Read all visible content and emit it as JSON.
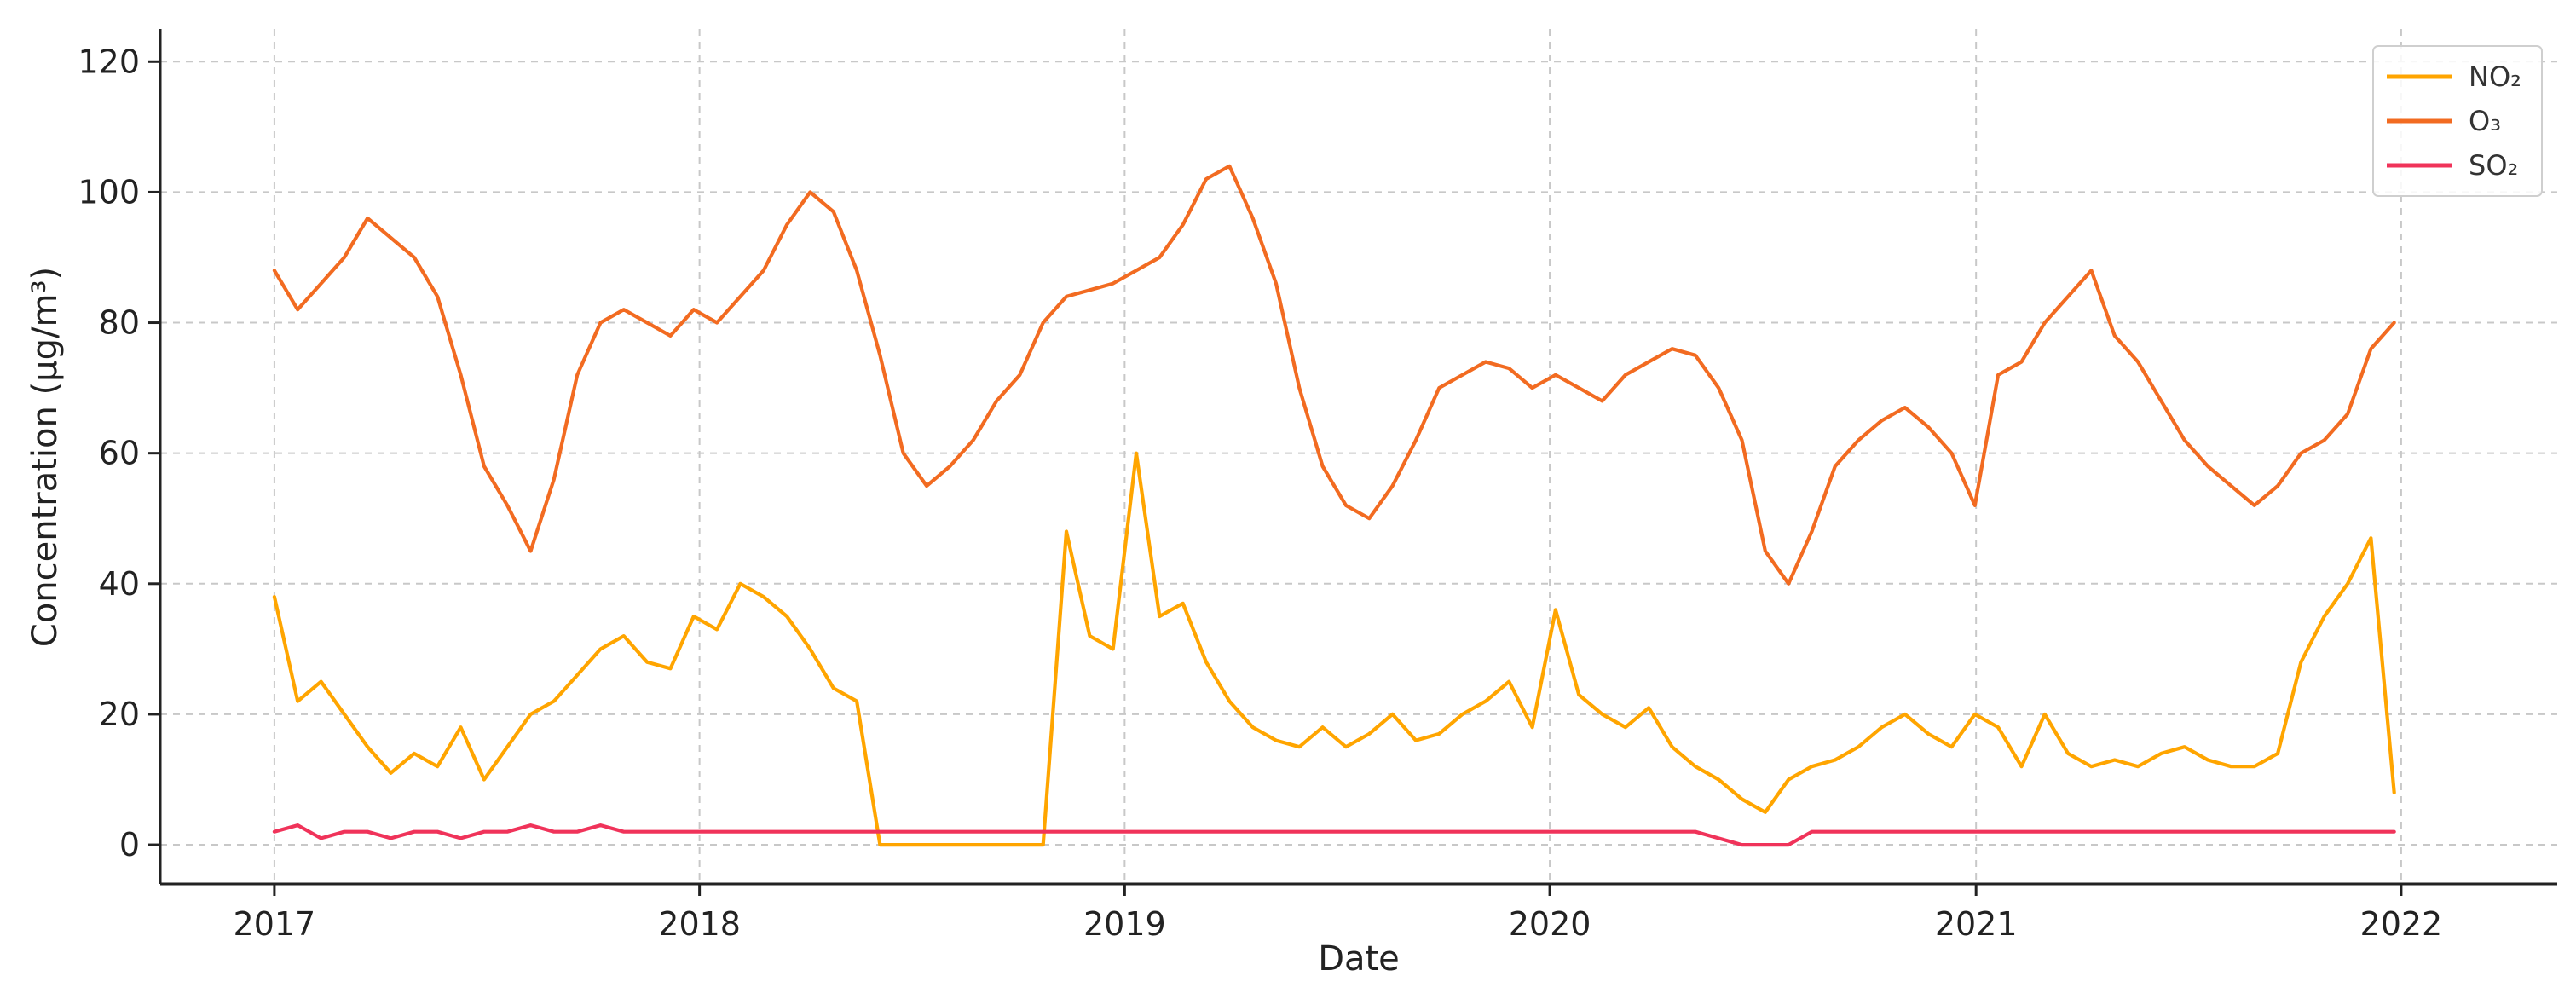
{
  "chart_data": {
    "type": "line",
    "title": "",
    "xlabel": "Date",
    "ylabel": "Concentration (µg/m³)",
    "x_type": "date",
    "xlim": [
      "2016-09-25",
      "2022-05-15"
    ],
    "ylim": [
      -6,
      125
    ],
    "x_ticks": [
      "2017",
      "2018",
      "2019",
      "2020",
      "2021",
      "2022"
    ],
    "x_tick_dates": [
      "2017-01-01",
      "2018-01-01",
      "2019-01-01",
      "2020-01-01",
      "2021-01-01",
      "2022-01-01"
    ],
    "y_ticks": [
      0,
      20,
      40,
      60,
      80,
      100,
      120
    ],
    "grid": true,
    "legend_position": "top-right",
    "series": [
      {
        "name": "NO₂",
        "color": "#FFA500",
        "x": [
          "2017-01-01",
          "2017-01-21",
          "2017-02-10",
          "2017-03-02",
          "2017-03-22",
          "2017-04-11",
          "2017-05-01",
          "2017-05-21",
          "2017-06-10",
          "2017-06-30",
          "2017-07-20",
          "2017-08-09",
          "2017-08-29",
          "2017-09-18",
          "2017-10-08",
          "2017-10-28",
          "2017-11-17",
          "2017-12-07",
          "2017-12-27",
          "2018-01-16",
          "2018-02-05",
          "2018-02-25",
          "2018-03-17",
          "2018-04-06",
          "2018-04-26",
          "2018-05-16",
          "2018-06-05",
          "2018-06-25",
          "2018-07-15",
          "2018-08-04",
          "2018-08-24",
          "2018-09-13",
          "2018-10-03",
          "2018-10-23",
          "2018-11-12",
          "2018-12-02",
          "2018-12-22",
          "2019-01-11",
          "2019-01-31",
          "2019-02-20",
          "2019-03-12",
          "2019-04-01",
          "2019-04-21",
          "2019-05-11",
          "2019-05-31",
          "2019-06-20",
          "2019-07-10",
          "2019-07-30",
          "2019-08-19",
          "2019-09-08",
          "2019-09-28",
          "2019-10-18",
          "2019-11-07",
          "2019-11-27",
          "2019-12-17",
          "2020-01-06",
          "2020-01-26",
          "2020-02-15",
          "2020-03-06",
          "2020-03-26",
          "2020-04-15",
          "2020-05-05",
          "2020-05-25",
          "2020-06-14",
          "2020-07-04",
          "2020-07-24",
          "2020-08-13",
          "2020-09-02",
          "2020-09-22",
          "2020-10-12",
          "2020-11-01",
          "2020-11-21",
          "2020-12-11",
          "2020-12-31",
          "2021-01-20",
          "2021-02-09",
          "2021-03-01",
          "2021-03-21",
          "2021-04-10",
          "2021-04-30",
          "2021-05-20",
          "2021-06-09",
          "2021-06-29",
          "2021-07-19",
          "2021-08-08",
          "2021-08-28",
          "2021-09-17",
          "2021-10-07",
          "2021-10-27",
          "2021-11-16",
          "2021-12-06",
          "2021-12-26"
        ],
        "values": [
          38,
          22,
          25,
          20,
          15,
          11,
          14,
          12,
          18,
          10,
          15,
          20,
          22,
          26,
          30,
          32,
          28,
          27,
          35,
          33,
          40,
          38,
          35,
          30,
          24,
          22,
          0,
          0,
          0,
          0,
          0,
          0,
          0,
          0,
          48,
          32,
          30,
          60,
          35,
          37,
          28,
          22,
          18,
          16,
          15,
          18,
          15,
          17,
          20,
          16,
          17,
          20,
          22,
          25,
          18,
          36,
          23,
          20,
          18,
          21,
          15,
          12,
          10,
          7,
          5,
          10,
          12,
          13,
          15,
          18,
          20,
          17,
          15,
          20,
          18,
          12,
          20,
          14,
          12,
          13,
          12,
          14,
          15,
          13,
          12,
          12,
          14,
          28,
          35,
          40,
          47,
          8
        ]
      },
      {
        "name": "O₃",
        "color": "#F26B21",
        "x": [
          "2017-01-01",
          "2017-01-21",
          "2017-02-10",
          "2017-03-02",
          "2017-03-22",
          "2017-04-11",
          "2017-05-01",
          "2017-05-21",
          "2017-06-10",
          "2017-06-30",
          "2017-07-20",
          "2017-08-09",
          "2017-08-29",
          "2017-09-18",
          "2017-10-08",
          "2017-10-28",
          "2017-11-17",
          "2017-12-07",
          "2017-12-27",
          "2018-01-16",
          "2018-02-05",
          "2018-02-25",
          "2018-03-17",
          "2018-04-06",
          "2018-04-26",
          "2018-05-16",
          "2018-06-05",
          "2018-06-25",
          "2018-07-15",
          "2018-08-04",
          "2018-08-24",
          "2018-09-13",
          "2018-10-03",
          "2018-10-23",
          "2018-11-12",
          "2018-12-02",
          "2018-12-22",
          "2019-01-11",
          "2019-01-31",
          "2019-02-20",
          "2019-03-12",
          "2019-04-01",
          "2019-04-21",
          "2019-05-11",
          "2019-05-31",
          "2019-06-20",
          "2019-07-10",
          "2019-07-30",
          "2019-08-19",
          "2019-09-08",
          "2019-09-28",
          "2019-10-18",
          "2019-11-07",
          "2019-11-27",
          "2019-12-17",
          "2020-01-06",
          "2020-01-26",
          "2020-02-15",
          "2020-03-06",
          "2020-03-26",
          "2020-04-15",
          "2020-05-05",
          "2020-05-25",
          "2020-06-14",
          "2020-07-04",
          "2020-07-24",
          "2020-08-13",
          "2020-09-02",
          "2020-09-22",
          "2020-10-12",
          "2020-11-01",
          "2020-11-21",
          "2020-12-11",
          "2020-12-31",
          "2021-01-20",
          "2021-02-09",
          "2021-03-01",
          "2021-03-21",
          "2021-04-10",
          "2021-04-30",
          "2021-05-20",
          "2021-06-09",
          "2021-06-29",
          "2021-07-19",
          "2021-08-08",
          "2021-08-28",
          "2021-09-17",
          "2021-10-07",
          "2021-10-27",
          "2021-11-16",
          "2021-12-06",
          "2021-12-26"
        ],
        "values": [
          88,
          82,
          86,
          90,
          96,
          93,
          90,
          84,
          72,
          58,
          52,
          45,
          56,
          72,
          80,
          82,
          80,
          78,
          82,
          80,
          84,
          88,
          95,
          100,
          97,
          88,
          75,
          60,
          55,
          58,
          62,
          68,
          72,
          80,
          84,
          85,
          86,
          88,
          90,
          95,
          102,
          104,
          96,
          86,
          70,
          58,
          52,
          50,
          55,
          62,
          70,
          72,
          74,
          73,
          70,
          72,
          70,
          68,
          72,
          74,
          76,
          75,
          70,
          62,
          45,
          40,
          48,
          58,
          62,
          65,
          67,
          64,
          60,
          52,
          72,
          74,
          80,
          84,
          88,
          78,
          74,
          68,
          62,
          58,
          55,
          52,
          55,
          60,
          62,
          66,
          76,
          80
        ]
      },
      {
        "name": "SO₂",
        "color": "#F0335A",
        "x": [
          "2017-01-01",
          "2017-01-21",
          "2017-02-10",
          "2017-03-02",
          "2017-03-22",
          "2017-04-11",
          "2017-05-01",
          "2017-05-21",
          "2017-06-10",
          "2017-06-30",
          "2017-07-20",
          "2017-08-09",
          "2017-08-29",
          "2017-09-18",
          "2017-10-08",
          "2017-10-28",
          "2017-11-17",
          "2017-12-07",
          "2017-12-27",
          "2018-01-16",
          "2018-02-05",
          "2018-02-25",
          "2018-03-17",
          "2018-04-06",
          "2018-04-26",
          "2018-05-16",
          "2018-06-05",
          "2018-06-25",
          "2018-07-15",
          "2018-08-04",
          "2018-08-24",
          "2018-09-13",
          "2018-10-03",
          "2018-10-23",
          "2018-11-12",
          "2018-12-02",
          "2018-12-22",
          "2019-01-11",
          "2019-01-31",
          "2019-02-20",
          "2019-03-12",
          "2019-04-01",
          "2019-04-21",
          "2019-05-11",
          "2019-05-31",
          "2019-06-20",
          "2019-07-10",
          "2019-07-30",
          "2019-08-19",
          "2019-09-08",
          "2019-09-28",
          "2019-10-18",
          "2019-11-07",
          "2019-11-27",
          "2019-12-17",
          "2020-01-06",
          "2020-01-26",
          "2020-02-15",
          "2020-03-06",
          "2020-03-26",
          "2020-04-15",
          "2020-05-05",
          "2020-05-25",
          "2020-06-14",
          "2020-07-04",
          "2020-07-24",
          "2020-08-13",
          "2020-09-02",
          "2020-09-22",
          "2020-10-12",
          "2020-11-01",
          "2020-11-21",
          "2020-12-11",
          "2020-12-31",
          "2021-01-20",
          "2021-02-09",
          "2021-03-01",
          "2021-03-21",
          "2021-04-10",
          "2021-04-30",
          "2021-05-20",
          "2021-06-09",
          "2021-06-29",
          "2021-07-19",
          "2021-08-08",
          "2021-08-28",
          "2021-09-17",
          "2021-10-07",
          "2021-10-27",
          "2021-11-16",
          "2021-12-06",
          "2021-12-26"
        ],
        "values": [
          2,
          3,
          1,
          2,
          2,
          1,
          2,
          2,
          1,
          2,
          2,
          3,
          2,
          2,
          3,
          2,
          2,
          2,
          2,
          2,
          2,
          2,
          2,
          2,
          2,
          2,
          2,
          2,
          2,
          2,
          2,
          2,
          2,
          2,
          2,
          2,
          2,
          2,
          2,
          2,
          2,
          2,
          2,
          2,
          2,
          2,
          2,
          2,
          2,
          2,
          2,
          2,
          2,
          2,
          2,
          2,
          2,
          2,
          2,
          2,
          2,
          2,
          1,
          0,
          0,
          0,
          2,
          2,
          2,
          2,
          2,
          2,
          2,
          2,
          2,
          2,
          2,
          2,
          2,
          2,
          2,
          2,
          2,
          2,
          2,
          2,
          2,
          2,
          2,
          2,
          2,
          2
        ]
      }
    ]
  }
}
